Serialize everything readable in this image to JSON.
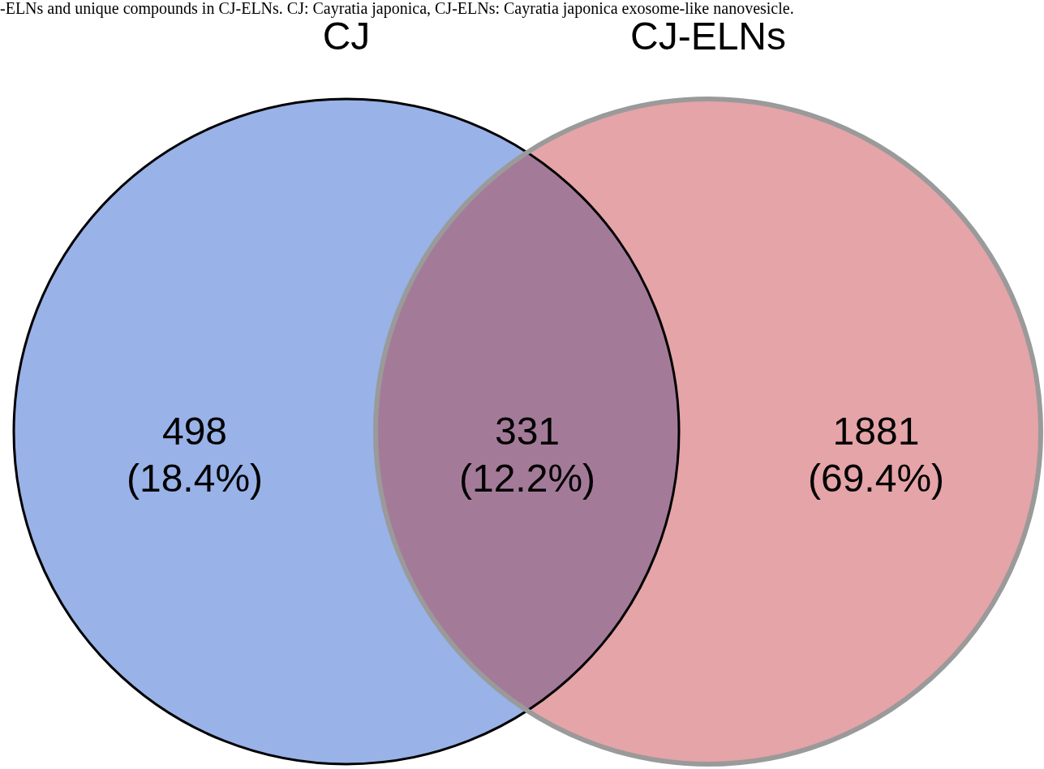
{
  "chart_data": {
    "type": "other",
    "annotations": [
      "-ELNs and unique compounds in CJ-ELNs. CJ: Cayratia japonica, CJ-ELNs: Cayratia japonica exosome-like nanovesicle.",
      "CJ",
      "CJ-ELNs",
      "(18.4%)",
      "(12.2%)",
      "(69.4%)"
    ],
    "data_labels": true,
    "categories": [
      null,
      null,
      null
    ],
    "values": [
      498,
      331,
      1881
    ],
    "colors": [
      "#99b2e8",
      "#a47a99",
      "#e5a4a8"
    ]
  }
}
